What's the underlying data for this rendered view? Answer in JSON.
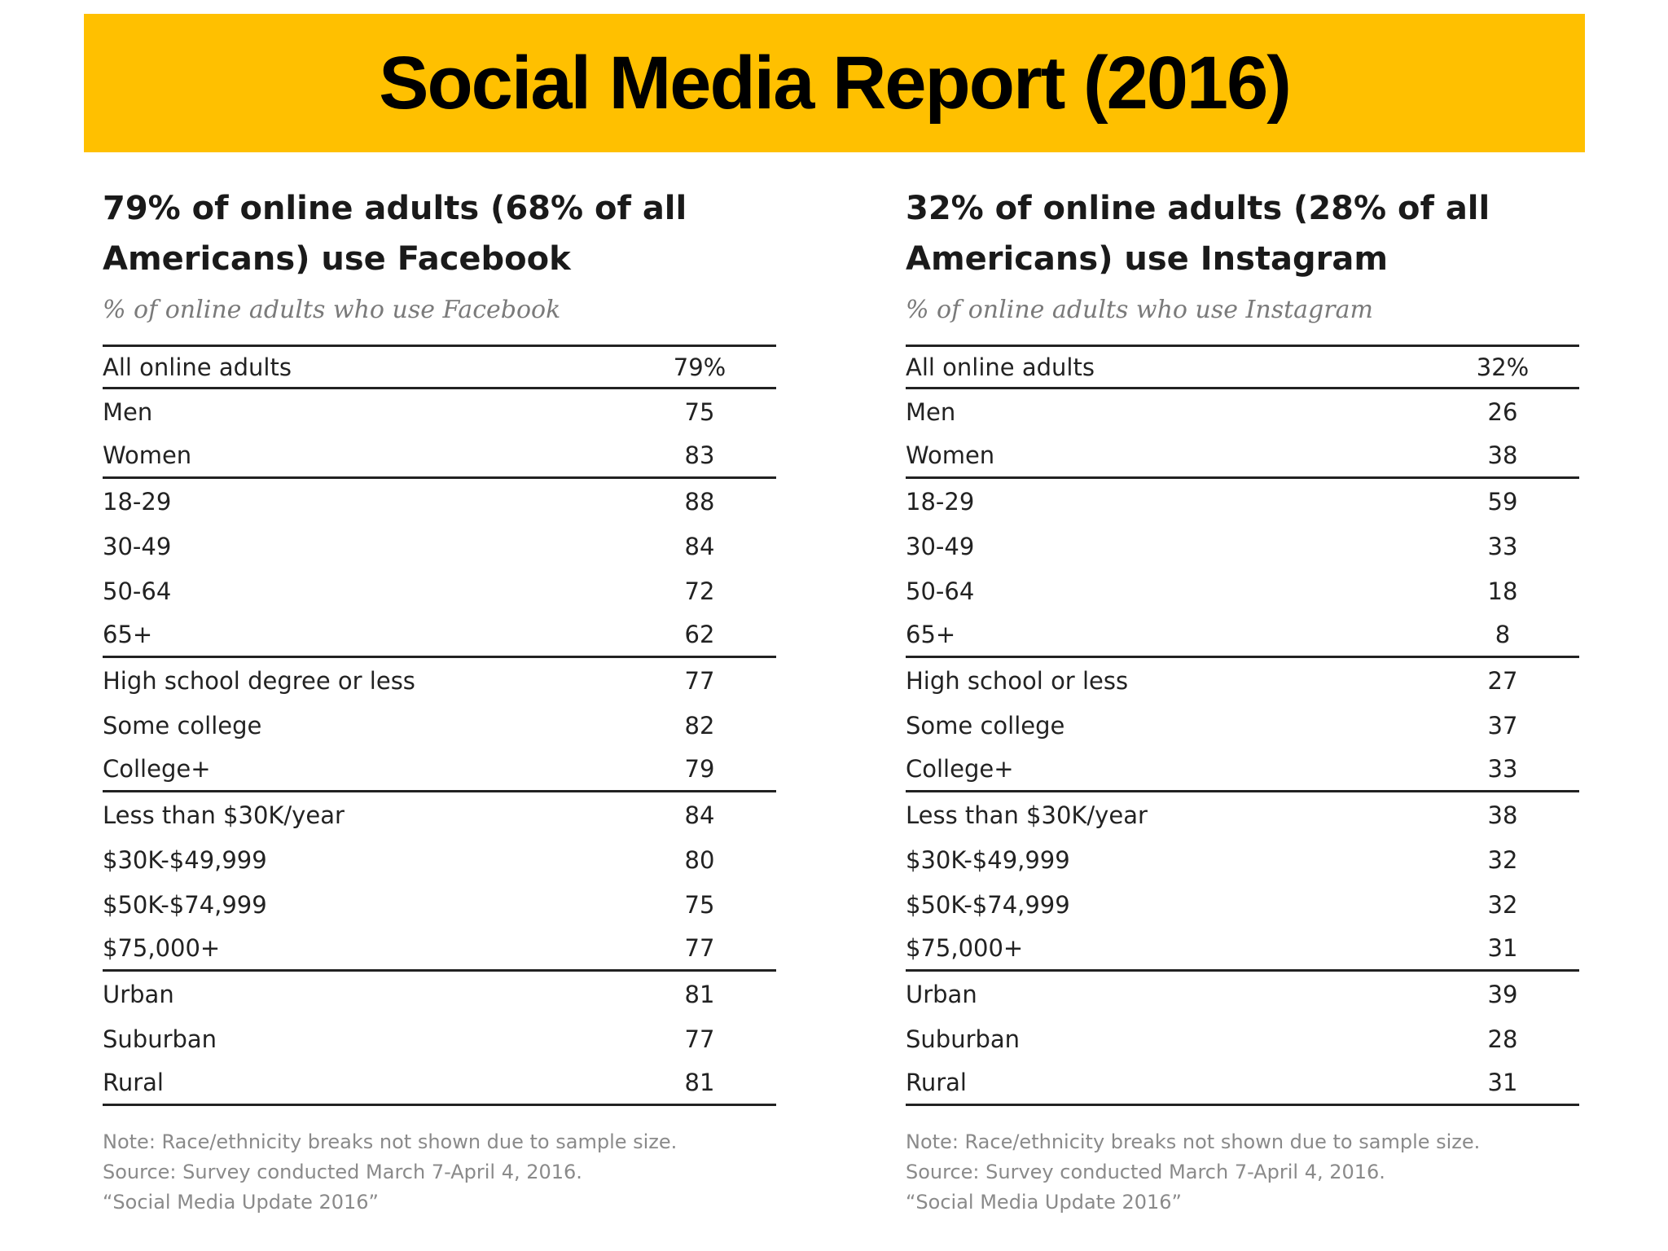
{
  "title": "Social Media Report (2016)",
  "colors": {
    "banner": "#FFC000"
  },
  "panels": [
    {
      "heading_line1": "79% of online adults (68% of all",
      "heading_line2": "Americans) use Facebook",
      "subheading": "% of online adults who use Facebook",
      "header_row": {
        "label": "All online adults",
        "value": "79%"
      },
      "groups": [
        [
          {
            "label": "Men",
            "value": "75"
          },
          {
            "label": "Women",
            "value": "83"
          }
        ],
        [
          {
            "label": "18-29",
            "value": "88"
          },
          {
            "label": "30-49",
            "value": "84"
          },
          {
            "label": "50-64",
            "value": "72"
          },
          {
            "label": "65+",
            "value": "62"
          }
        ],
        [
          {
            "label": "High school degree or less",
            "value": "77"
          },
          {
            "label": "Some college",
            "value": "82"
          },
          {
            "label": "College+",
            "value": "79"
          }
        ],
        [
          {
            "label": "Less than $30K/year",
            "value": "84"
          },
          {
            "label": "$30K-$49,999",
            "value": "80"
          },
          {
            "label": "$50K-$74,999",
            "value": "75"
          },
          {
            "label": "$75,000+",
            "value": "77"
          }
        ],
        [
          {
            "label": "Urban",
            "value": "81"
          },
          {
            "label": "Suburban",
            "value": "77"
          },
          {
            "label": "Rural",
            "value": "81"
          }
        ]
      ],
      "note_lines": [
        "Note: Race/ethnicity breaks not shown due to sample size.",
        "Source: Survey conducted March 7-April 4, 2016.",
        "“Social Media Update 2016”"
      ]
    },
    {
      "heading_line1": "32% of online adults (28% of all",
      "heading_line2": "Americans) use Instagram",
      "subheading": "% of online adults who use Instagram",
      "header_row": {
        "label": "All online adults",
        "value": "32%"
      },
      "groups": [
        [
          {
            "label": "Men",
            "value": "26"
          },
          {
            "label": "Women",
            "value": "38"
          }
        ],
        [
          {
            "label": "18-29",
            "value": "59"
          },
          {
            "label": "30-49",
            "value": "33"
          },
          {
            "label": "50-64",
            "value": "18"
          },
          {
            "label": "65+",
            "value": "8"
          }
        ],
        [
          {
            "label": "High school or less",
            "value": "27"
          },
          {
            "label": "Some college",
            "value": "37"
          },
          {
            "label": "College+",
            "value": "33"
          }
        ],
        [
          {
            "label": "Less than $30K/year",
            "value": "38"
          },
          {
            "label": "$30K-$49,999",
            "value": "32"
          },
          {
            "label": "$50K-$74,999",
            "value": "32"
          },
          {
            "label": "$75,000+",
            "value": "31"
          }
        ],
        [
          {
            "label": "Urban",
            "value": "39"
          },
          {
            "label": "Suburban",
            "value": "28"
          },
          {
            "label": "Rural",
            "value": "31"
          }
        ]
      ],
      "note_lines": [
        "Note: Race/ethnicity breaks not shown due to sample size.",
        "Source: Survey conducted March 7-April 4, 2016.",
        "“Social Media Update 2016”"
      ]
    }
  ]
}
